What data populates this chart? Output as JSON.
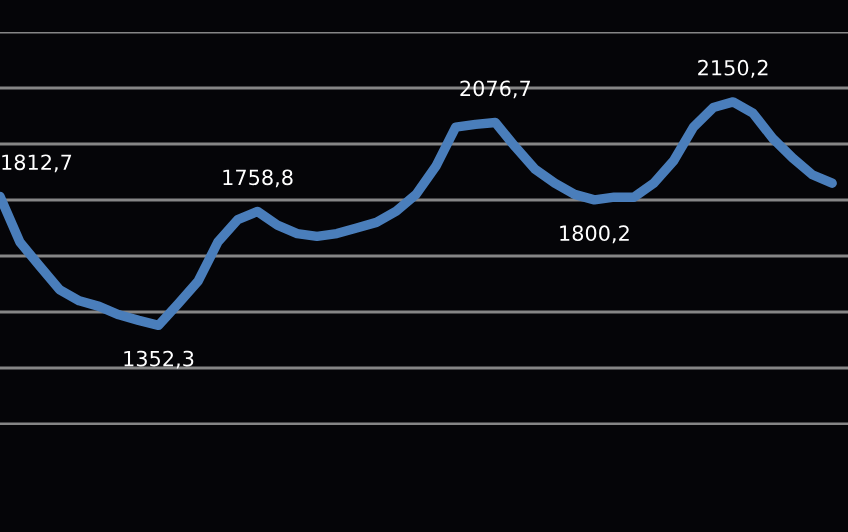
{
  "chart_data": {
    "type": "line",
    "categories": [
      null,
      null,
      null,
      null,
      null,
      null,
      null,
      null,
      null,
      null,
      null,
      null,
      null,
      null,
      null,
      null,
      null,
      null,
      null,
      null,
      null,
      null,
      null,
      null,
      null,
      null,
      null,
      null,
      null,
      null,
      null,
      null,
      null,
      null,
      null,
      null,
      null,
      null,
      null,
      null,
      null,
      null,
      null
    ],
    "series": [
      {
        "color": "#4a7ebb",
        "values": [
          1812.7,
          1650,
          1564,
          1480,
          1440,
          1420,
          1390,
          1370,
          1352.3,
          1430,
          1510,
          1650,
          1730,
          1758.8,
          1710,
          1680,
          1670,
          1680,
          1700,
          1720,
          1760,
          1820,
          1920,
          2060,
          2070,
          2076.7,
          1990,
          1910,
          1860,
          1820,
          1800.2,
          1810,
          1810,
          1860,
          1940,
          2060,
          2130,
          2150.2,
          2110,
          2020,
          1950,
          1890,
          1860
        ],
        "value_labels": [
          "1812,7",
          null,
          null,
          null,
          null,
          null,
          null,
          null,
          "1352,3",
          null,
          null,
          null,
          null,
          "1758,8",
          null,
          null,
          null,
          null,
          null,
          null,
          null,
          null,
          null,
          null,
          null,
          "2076,7",
          null,
          null,
          null,
          null,
          "1800,2",
          null,
          null,
          null,
          null,
          null,
          null,
          "2150,2",
          null,
          null,
          null,
          null,
          null
        ]
      }
    ],
    "ylim": [
      1000,
      2400
    ],
    "yticks": [
      {
        "value": 1000,
        "label": null
      },
      {
        "value": 1200,
        "label": null
      },
      {
        "value": 1400,
        "label": null
      },
      {
        "value": 1600,
        "label": null
      },
      {
        "value": 1800,
        "label": null
      },
      {
        "value": 2000,
        "label": null
      },
      {
        "value": 2200,
        "label": null
      },
      {
        "value": 2400,
        "label": null
      }
    ],
    "grid": "y",
    "legend": false,
    "marker": "none",
    "line_style": "solid"
  }
}
